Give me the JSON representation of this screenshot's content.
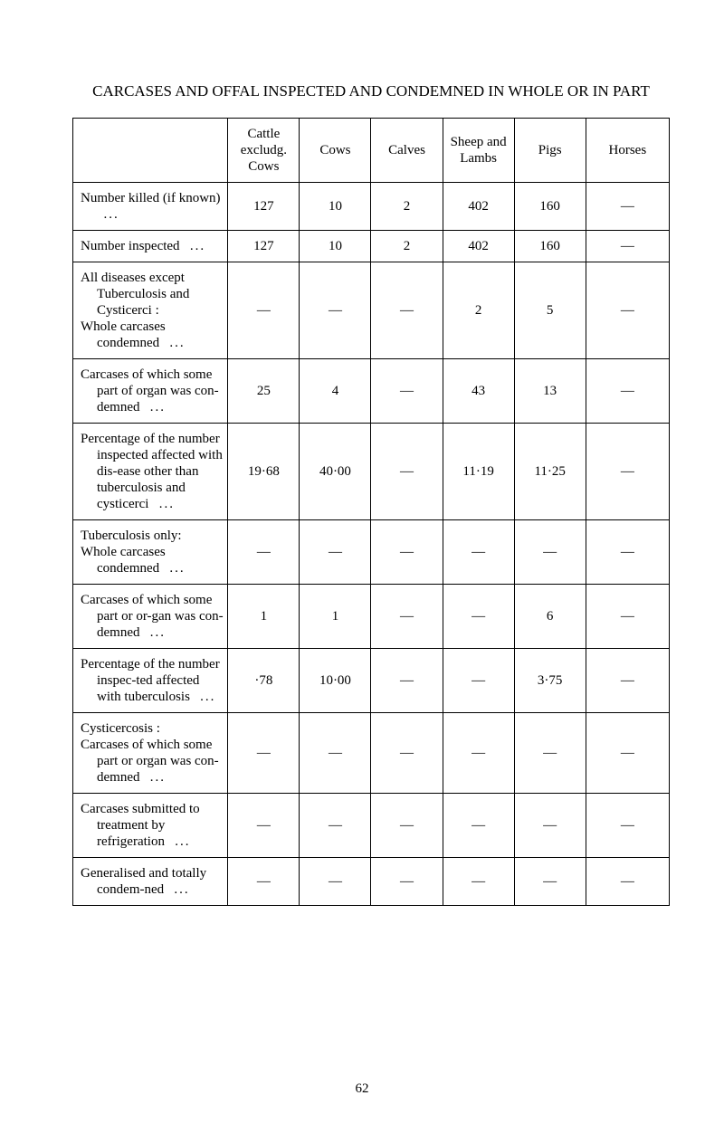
{
  "document": {
    "title": "CARCASES AND OFFAL INSPECTED AND CONDEMNED IN WHOLE OR IN PART",
    "page_number": "62",
    "table": {
      "columns": {
        "col1": "Cattle excludg. Cows",
        "col2": "Cows",
        "col3": "Calves",
        "col4": "Sheep and Lambs",
        "col5": "Pigs",
        "col6": "Horses"
      },
      "rows": [
        {
          "label": "Number killed (if known)",
          "indent": true,
          "v": [
            "127",
            "10",
            "2",
            "402",
            "160",
            "—"
          ]
        },
        {
          "label": "Number inspected",
          "indent": false,
          "v": [
            "127",
            "10",
            "2",
            "402",
            "160",
            "—"
          ]
        },
        {
          "label": "All diseases except Tuberculosis and Cysticerci :\nWhole carcases condemned",
          "indent": true,
          "v": [
            "—",
            "—",
            "—",
            "2",
            "5",
            "—"
          ]
        },
        {
          "label": "Carcases of which some part of organ was con-demned",
          "indent": true,
          "v": [
            "25",
            "4",
            "—",
            "43",
            "13",
            "—"
          ]
        },
        {
          "label": "Percentage of the number inspected affected with dis-ease other than tuberculosis and cysticerci",
          "indent": true,
          "v": [
            "19·68",
            "40·00",
            "—",
            "11·19",
            "11·25",
            "—"
          ]
        },
        {
          "label": "Tuberculosis only:\nWhole carcases condemned",
          "indent": true,
          "v": [
            "—",
            "—",
            "—",
            "—",
            "—",
            "—"
          ]
        },
        {
          "label": "Carcases of which some part or or-gan was con-demned",
          "indent": true,
          "v": [
            "1",
            "1",
            "—",
            "—",
            "6",
            "—"
          ]
        },
        {
          "label": "Percentage of the number inspec-ted affected with tuberculosis",
          "indent": true,
          "v": [
            "·78",
            "10·00",
            "—",
            "—",
            "3·75",
            "—"
          ]
        },
        {
          "label": "Cysticercosis :\nCarcases of which some part or organ was con-demned",
          "indent": true,
          "v": [
            "—",
            "—",
            "—",
            "—",
            "—",
            "—"
          ]
        },
        {
          "label": "Carcases submitted to treatment by refrigeration",
          "indent": true,
          "v": [
            "—",
            "—",
            "—",
            "—",
            "—",
            "—"
          ]
        },
        {
          "label": "Generalised and totally condem-ned",
          "indent": true,
          "v": [
            "—",
            "—",
            "—",
            "—",
            "—",
            "—"
          ]
        }
      ]
    }
  }
}
